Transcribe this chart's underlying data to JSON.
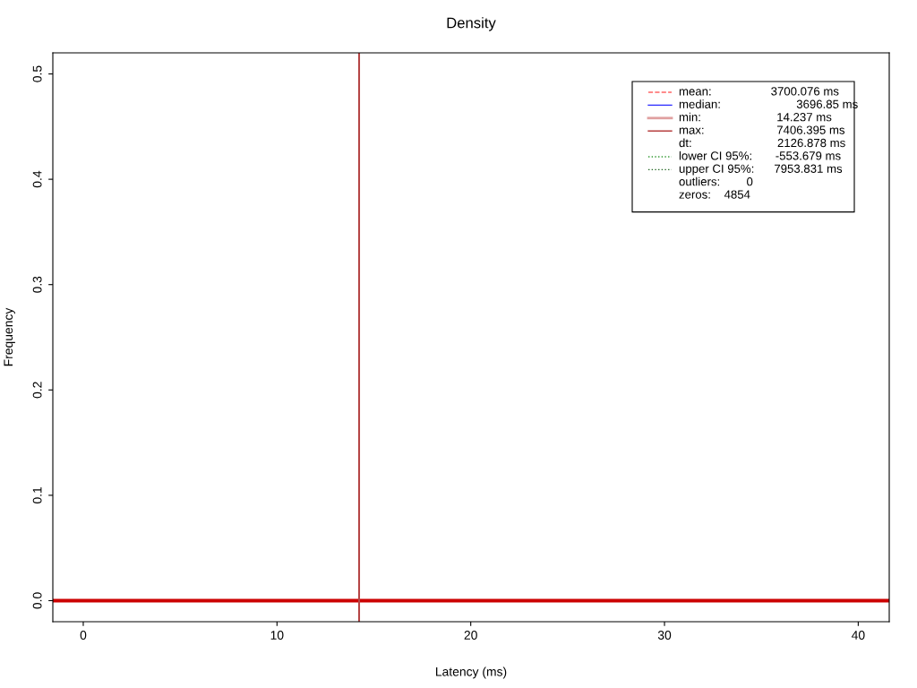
{
  "chart_data": {
    "type": "line",
    "title": "Density",
    "xlabel": "Latency (ms)",
    "ylabel": "Frequency",
    "xlim": [
      -1.57,
      41.6
    ],
    "ylim": [
      -0.02,
      0.52
    ],
    "xticks": [
      0,
      10,
      20,
      30,
      40
    ],
    "yticks": [
      {
        "value": 0,
        "label": "0.0"
      },
      {
        "value": 0.1,
        "label": "0.1"
      },
      {
        "value": 0.2,
        "label": "0.2"
      },
      {
        "value": 0.3,
        "label": "0.3"
      },
      {
        "value": 0.4,
        "label": "0.4"
      },
      {
        "value": 0.5,
        "label": "0.5"
      }
    ],
    "series": [
      {
        "color": "#cc0000",
        "x": [
          -1.57,
          41.6
        ],
        "values": [
          0,
          0
        ]
      }
    ],
    "ref_lines": [
      {
        "axis": "x",
        "value": 14.237,
        "color": "#b54545",
        "line_style": "solid"
      }
    ],
    "annotations": [
      "mean:                  3700.076 ms",
      "median:                       3696.85 ms",
      "min:                       14.237 ms",
      "max:                      7406.395 ms",
      "dt:                          2126.878 ms",
      "lower CI 95%:       -553.679 ms",
      "upper CI 95%:      7953.831 ms",
      "outliers:        0",
      "zeros:    4854"
    ],
    "grid": false
  }
}
